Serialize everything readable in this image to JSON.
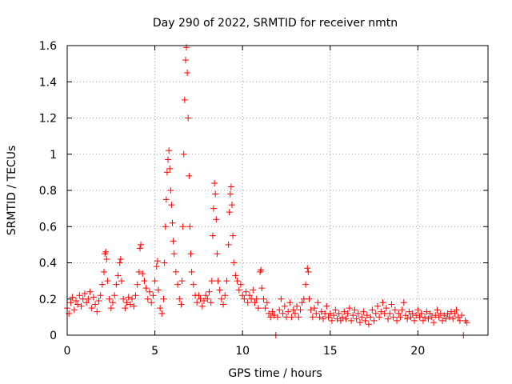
{
  "chart_data": {
    "type": "scatter",
    "title": "Day 290 of 2022, SRMTID for receiver nmtn",
    "xlabel": "GPS time / hours",
    "ylabel": "SRMTID / TECUs",
    "xlim": [
      0,
      24
    ],
    "ylim": [
      0,
      1.6
    ],
    "grid": true,
    "marker": "+",
    "marker_color": "#ff0000",
    "x_ticks": [
      0,
      5,
      10,
      15,
      20
    ],
    "x_tick_labels": [
      "0",
      "5",
      "10",
      "15",
      "20"
    ],
    "y_ticks": [
      0,
      0.2,
      0.4,
      0.6,
      0.8,
      1.0,
      1.2,
      1.4,
      1.6
    ],
    "y_tick_labels": [
      "0",
      "0.2",
      "0.4",
      "0.6",
      "0.8",
      "1",
      "1.2",
      "1.4",
      "1.6"
    ],
    "series": [
      {
        "name": "SRMTID",
        "points": [
          [
            0.0,
            0.15
          ],
          [
            0.1,
            0.12
          ],
          [
            0.2,
            0.18
          ],
          [
            0.3,
            0.21
          ],
          [
            0.4,
            0.14
          ],
          [
            0.5,
            0.19
          ],
          [
            0.6,
            0.17
          ],
          [
            0.7,
            0.22
          ],
          [
            0.8,
            0.16
          ],
          [
            0.9,
            0.2
          ],
          [
            1.0,
            0.23
          ],
          [
            1.1,
            0.18
          ],
          [
            1.2,
            0.2
          ],
          [
            1.3,
            0.24
          ],
          [
            1.4,
            0.15
          ],
          [
            1.5,
            0.21
          ],
          [
            1.6,
            0.17
          ],
          [
            1.7,
            0.13
          ],
          [
            1.8,
            0.19
          ],
          [
            1.9,
            0.22
          ],
          [
            2.0,
            0.28
          ],
          [
            2.1,
            0.35
          ],
          [
            2.15,
            0.45
          ],
          [
            2.2,
            0.46
          ],
          [
            2.25,
            0.42
          ],
          [
            2.3,
            0.3
          ],
          [
            2.4,
            0.2
          ],
          [
            2.5,
            0.15
          ],
          [
            2.6,
            0.18
          ],
          [
            2.7,
            0.22
          ],
          [
            2.8,
            0.28
          ],
          [
            2.9,
            0.33
          ],
          [
            3.0,
            0.4
          ],
          [
            3.05,
            0.42
          ],
          [
            3.1,
            0.3
          ],
          [
            3.2,
            0.2
          ],
          [
            3.3,
            0.15
          ],
          [
            3.4,
            0.18
          ],
          [
            3.5,
            0.21
          ],
          [
            3.6,
            0.17
          ],
          [
            3.7,
            0.2
          ],
          [
            3.8,
            0.16
          ],
          [
            3.9,
            0.22
          ],
          [
            4.0,
            0.28
          ],
          [
            4.1,
            0.35
          ],
          [
            4.15,
            0.48
          ],
          [
            4.2,
            0.5
          ],
          [
            4.3,
            0.34
          ],
          [
            4.4,
            0.3
          ],
          [
            4.5,
            0.26
          ],
          [
            4.6,
            0.2
          ],
          [
            4.7,
            0.24
          ],
          [
            4.8,
            0.18
          ],
          [
            4.9,
            0.22
          ],
          [
            5.0,
            0.3
          ],
          [
            5.1,
            0.38
          ],
          [
            5.15,
            0.41
          ],
          [
            5.2,
            0.25
          ],
          [
            5.3,
            0.15
          ],
          [
            5.4,
            0.12
          ],
          [
            5.5,
            0.2
          ],
          [
            5.55,
            0.4
          ],
          [
            5.6,
            0.6
          ],
          [
            5.65,
            0.75
          ],
          [
            5.7,
            0.9
          ],
          [
            5.75,
            0.97
          ],
          [
            5.8,
            1.02
          ],
          [
            5.85,
            0.92
          ],
          [
            5.9,
            0.8
          ],
          [
            5.95,
            0.72
          ],
          [
            6.0,
            0.62
          ],
          [
            6.05,
            0.52
          ],
          [
            6.1,
            0.45
          ],
          [
            6.2,
            0.35
          ],
          [
            6.3,
            0.28
          ],
          [
            6.4,
            0.2
          ],
          [
            6.5,
            0.17
          ],
          [
            6.55,
            0.3
          ],
          [
            6.6,
            0.6
          ],
          [
            6.65,
            1.0
          ],
          [
            6.7,
            1.3
          ],
          [
            6.75,
            1.52
          ],
          [
            6.8,
            1.59
          ],
          [
            6.85,
            1.45
          ],
          [
            6.9,
            1.2
          ],
          [
            6.95,
            0.88
          ],
          [
            7.0,
            0.6
          ],
          [
            7.05,
            0.45
          ],
          [
            7.1,
            0.35
          ],
          [
            7.2,
            0.28
          ],
          [
            7.3,
            0.22
          ],
          [
            7.4,
            0.18
          ],
          [
            7.5,
            0.22
          ],
          [
            7.6,
            0.2
          ],
          [
            7.7,
            0.16
          ],
          [
            7.8,
            0.19
          ],
          [
            7.9,
            0.22
          ],
          [
            8.0,
            0.2
          ],
          [
            8.1,
            0.24
          ],
          [
            8.2,
            0.18
          ],
          [
            8.25,
            0.3
          ],
          [
            8.3,
            0.55
          ],
          [
            8.35,
            0.7
          ],
          [
            8.4,
            0.84
          ],
          [
            8.45,
            0.78
          ],
          [
            8.5,
            0.64
          ],
          [
            8.55,
            0.45
          ],
          [
            8.6,
            0.3
          ],
          [
            8.7,
            0.25
          ],
          [
            8.8,
            0.2
          ],
          [
            8.9,
            0.17
          ],
          [
            9.0,
            0.22
          ],
          [
            9.1,
            0.3
          ],
          [
            9.2,
            0.5
          ],
          [
            9.25,
            0.68
          ],
          [
            9.3,
            0.78
          ],
          [
            9.35,
            0.82
          ],
          [
            9.4,
            0.72
          ],
          [
            9.45,
            0.55
          ],
          [
            9.5,
            0.4
          ],
          [
            9.6,
            0.33
          ],
          [
            9.7,
            0.3
          ],
          [
            9.8,
            0.25
          ],
          [
            9.9,
            0.28
          ],
          [
            10.0,
            0.22
          ],
          [
            10.1,
            0.2
          ],
          [
            10.2,
            0.24
          ],
          [
            10.3,
            0.18
          ],
          [
            10.4,
            0.22
          ],
          [
            10.5,
            0.2
          ],
          [
            10.6,
            0.25
          ],
          [
            10.7,
            0.18
          ],
          [
            10.8,
            0.2
          ],
          [
            10.9,
            0.15
          ],
          [
            11.0,
            0.35
          ],
          [
            11.05,
            0.36
          ],
          [
            11.1,
            0.26
          ],
          [
            11.2,
            0.2
          ],
          [
            11.3,
            0.15
          ],
          [
            11.4,
            0.18
          ],
          [
            11.5,
            0.12
          ],
          [
            11.6,
            0.1
          ],
          [
            11.7,
            0.13
          ],
          [
            11.8,
            0.11
          ],
          [
            11.9,
            0.0
          ],
          [
            12.0,
            0.1
          ],
          [
            12.1,
            0.14
          ],
          [
            12.2,
            0.2
          ],
          [
            12.3,
            0.12
          ],
          [
            12.4,
            0.16
          ],
          [
            12.5,
            0.1
          ],
          [
            12.6,
            0.13
          ],
          [
            12.7,
            0.18
          ],
          [
            12.8,
            0.1
          ],
          [
            12.9,
            0.14
          ],
          [
            13.0,
            0.12
          ],
          [
            13.1,
            0.16
          ],
          [
            13.2,
            0.1
          ],
          [
            13.3,
            0.14
          ],
          [
            13.4,
            0.18
          ],
          [
            13.5,
            0.2
          ],
          [
            13.6,
            0.28
          ],
          [
            13.7,
            0.37
          ],
          [
            13.75,
            0.35
          ],
          [
            13.8,
            0.2
          ],
          [
            13.9,
            0.14
          ],
          [
            14.0,
            0.1
          ],
          [
            14.1,
            0.15
          ],
          [
            14.2,
            0.12
          ],
          [
            14.3,
            0.18
          ],
          [
            14.4,
            0.1
          ],
          [
            14.5,
            0.13
          ],
          [
            14.6,
            0.09
          ],
          [
            14.7,
            0.12
          ],
          [
            14.8,
            0.16
          ],
          [
            14.9,
            0.1
          ],
          [
            15.0,
            0.12
          ],
          [
            15.1,
            0.08
          ],
          [
            15.2,
            0.11
          ],
          [
            15.3,
            0.14
          ],
          [
            15.4,
            0.09
          ],
          [
            15.5,
            0.12
          ],
          [
            15.6,
            0.08
          ],
          [
            15.7,
            0.1
          ],
          [
            15.8,
            0.13
          ],
          [
            15.9,
            0.09
          ],
          [
            16.0,
            0.12
          ],
          [
            16.1,
            0.15
          ],
          [
            16.2,
            0.08
          ],
          [
            16.3,
            0.11
          ],
          [
            16.4,
            0.14
          ],
          [
            16.5,
            0.09
          ],
          [
            16.6,
            0.12
          ],
          [
            16.7,
            0.07
          ],
          [
            16.8,
            0.1
          ],
          [
            16.9,
            0.13
          ],
          [
            17.0,
            0.08
          ],
          [
            17.1,
            0.11
          ],
          [
            17.2,
            0.06
          ],
          [
            17.3,
            0.1
          ],
          [
            17.4,
            0.14
          ],
          [
            17.5,
            0.08
          ],
          [
            17.6,
            0.12
          ],
          [
            17.7,
            0.16
          ],
          [
            17.8,
            0.1
          ],
          [
            17.9,
            0.13
          ],
          [
            18.0,
            0.18
          ],
          [
            18.1,
            0.12
          ],
          [
            18.2,
            0.15
          ],
          [
            18.3,
            0.09
          ],
          [
            18.4,
            0.12
          ],
          [
            18.5,
            0.17
          ],
          [
            18.6,
            0.1
          ],
          [
            18.7,
            0.14
          ],
          [
            18.8,
            0.08
          ],
          [
            18.9,
            0.12
          ],
          [
            19.0,
            0.1
          ],
          [
            19.1,
            0.14
          ],
          [
            19.2,
            0.18
          ],
          [
            19.3,
            0.11
          ],
          [
            19.4,
            0.09
          ],
          [
            19.5,
            0.13
          ],
          [
            19.6,
            0.1
          ],
          [
            19.7,
            0.12
          ],
          [
            19.8,
            0.08
          ],
          [
            19.9,
            0.11
          ],
          [
            20.0,
            0.14
          ],
          [
            20.1,
            0.1
          ],
          [
            20.2,
            0.12
          ],
          [
            20.3,
            0.08
          ],
          [
            20.4,
            0.1
          ],
          [
            20.5,
            0.13
          ],
          [
            20.6,
            0.09
          ],
          [
            20.7,
            0.12
          ],
          [
            20.8,
            0.1
          ],
          [
            20.9,
            0.07
          ],
          [
            21.0,
            0.11
          ],
          [
            21.1,
            0.14
          ],
          [
            21.2,
            0.1
          ],
          [
            21.3,
            0.12
          ],
          [
            21.4,
            0.08
          ],
          [
            21.5,
            0.11
          ],
          [
            21.6,
            0.09
          ],
          [
            21.7,
            0.12
          ],
          [
            21.8,
            0.1
          ],
          [
            21.9,
            0.13
          ],
          [
            22.0,
            0.09
          ],
          [
            22.1,
            0.12
          ],
          [
            22.2,
            0.14
          ],
          [
            22.3,
            0.1
          ],
          [
            22.4,
            0.08
          ],
          [
            22.5,
            0.11
          ],
          [
            22.6,
            0.0
          ],
          [
            22.7,
            0.08
          ],
          [
            22.8,
            0.07
          ]
        ]
      }
    ]
  }
}
